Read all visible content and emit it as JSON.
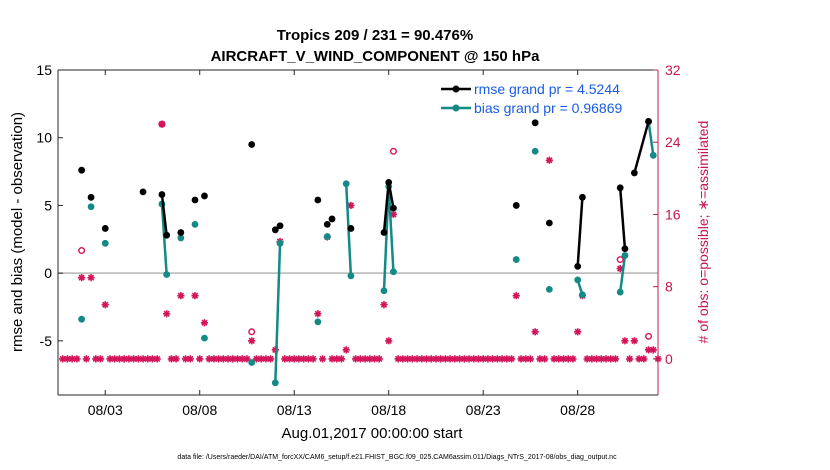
{
  "chart_data": {
    "type": "line",
    "title_line1": "Tropics 209 / 231 = 90.476%",
    "title_line2": "AIRCRAFT_V_WIND_COMPONENT @ 150 hPa",
    "xlabel": "Aug.01,2017 00:00:00 start",
    "ylabel_left": "rmse and bias (model - observation)",
    "ylabel_right": "# of obs: o=possible; ∗=assimilated",
    "footnote": "data file: /Users/raeder/DAI/ATM_forcXX/CAM6_setup/f.e21.FHIST_BGC.f09_025.CAM6assim.011/Diags_NTrS_2017-08/obs_diag_output.nc",
    "xlim": [
      0.5,
      32.25
    ],
    "ylim_left": [
      -9,
      15
    ],
    "ylim_right": [
      -4,
      32
    ],
    "x_ticks": [
      {
        "label": "08/03",
        "x": 3
      },
      {
        "label": "08/08",
        "x": 8
      },
      {
        "label": "08/13",
        "x": 13
      },
      {
        "label": "08/18",
        "x": 18
      },
      {
        "label": "08/23",
        "x": 23
      },
      {
        "label": "08/28",
        "x": 28
      }
    ],
    "y_ticks_left": [
      -5,
      0,
      5,
      10,
      15
    ],
    "y_ticks_right": [
      0,
      8,
      16,
      24,
      32
    ],
    "zero_line": 0,
    "legend": [
      {
        "name": "rmse grand pr = 4.5244"
      },
      {
        "name": "bias grand pr = 0.96869"
      }
    ],
    "colors": {
      "rmse": "#000000",
      "bias": "#138a85",
      "obs": "#d4145a",
      "zero_line": "#b5b5b5",
      "legend_text": "#1a5ce6"
    },
    "rmse": [
      {
        "x": 1.75,
        "y": 7.6
      },
      {
        "x": 2.25,
        "y": 5.6
      },
      {
        "x": 3.0,
        "y": 3.3
      },
      {
        "x": 5.0,
        "y": 6.0
      },
      {
        "x": 6.0,
        "y": 5.8
      },
      {
        "x": 6.25,
        "y": 2.8
      },
      {
        "x": 7.0,
        "y": 3.0
      },
      {
        "x": 7.75,
        "y": 5.4
      },
      {
        "x": 8.25,
        "y": 5.7
      },
      {
        "x": 10.75,
        "y": 9.5
      },
      {
        "x": 12.0,
        "y": 3.2
      },
      {
        "x": 12.25,
        "y": 3.5
      },
      {
        "x": 14.25,
        "y": 5.4
      },
      {
        "x": 14.75,
        "y": 3.6
      },
      {
        "x": 15.0,
        "y": 4.0
      },
      {
        "x": 16.0,
        "y": 3.3
      },
      {
        "x": 17.75,
        "y": 3.0
      },
      {
        "x": 18.0,
        "y": 6.7
      },
      {
        "x": 18.25,
        "y": 4.8
      },
      {
        "x": 24.75,
        "y": 5.0
      },
      {
        "x": 25.75,
        "y": 11.1
      },
      {
        "x": 26.5,
        "y": 3.7
      },
      {
        "x": 28.0,
        "y": 0.5
      },
      {
        "x": 28.25,
        "y": 5.6
      },
      {
        "x": 30.25,
        "y": 6.3
      },
      {
        "x": 30.5,
        "y": 1.8
      },
      {
        "x": 31.0,
        "y": 7.4
      },
      {
        "x": 31.75,
        "y": 11.2
      }
    ],
    "rmse_segments": [
      [
        4,
        5
      ],
      [
        10,
        11
      ],
      [
        16,
        17
      ],
      [
        17,
        18
      ],
      [
        22,
        23
      ],
      [
        24,
        25
      ],
      [
        27,
        26
      ]
    ],
    "bias": [
      {
        "x": 1.75,
        "y": -3.4
      },
      {
        "x": 2.25,
        "y": 4.9
      },
      {
        "x": 3.0,
        "y": 2.2
      },
      {
        "x": 6.0,
        "y": 5.1
      },
      {
        "x": 6.25,
        "y": -0.1
      },
      {
        "x": 7.0,
        "y": 2.6
      },
      {
        "x": 7.75,
        "y": 3.6
      },
      {
        "x": 8.25,
        "y": -4.8
      },
      {
        "x": 10.75,
        "y": -6.6
      },
      {
        "x": 12.0,
        "y": -8.1
      },
      {
        "x": 12.25,
        "y": 2.2
      },
      {
        "x": 14.25,
        "y": -3.6
      },
      {
        "x": 14.75,
        "y": 2.7
      },
      {
        "x": 15.75,
        "y": 6.6
      },
      {
        "x": 16.0,
        "y": -0.2
      },
      {
        "x": 17.75,
        "y": -1.3
      },
      {
        "x": 18.0,
        "y": 6.4
      },
      {
        "x": 18.25,
        "y": 0.1
      },
      {
        "x": 24.75,
        "y": 1.0
      },
      {
        "x": 25.75,
        "y": 9.0
      },
      {
        "x": 26.5,
        "y": -1.2
      },
      {
        "x": 28.0,
        "y": -0.5
      },
      {
        "x": 28.25,
        "y": -1.6
      },
      {
        "x": 30.25,
        "y": -1.4
      },
      {
        "x": 30.5,
        "y": 1.3
      },
      {
        "x": 31.75,
        "y": 11.2
      },
      {
        "x": 32.0,
        "y": 8.7
      }
    ],
    "bias_segments": [
      [
        3,
        4
      ],
      [
        9,
        10
      ],
      [
        13,
        14
      ],
      [
        15,
        16
      ],
      [
        16,
        17
      ],
      [
        21,
        22
      ],
      [
        23,
        24
      ],
      [
        25,
        26
      ]
    ],
    "obs_possible": [
      {
        "x": 1.75,
        "y": 12
      },
      {
        "x": 6.0,
        "y": 26
      },
      {
        "x": 10.75,
        "y": 3
      },
      {
        "x": 18.25,
        "y": 23
      },
      {
        "x": 30.25,
        "y": 11
      },
      {
        "x": 31.75,
        "y": 2.5
      }
    ],
    "obs_assimilated": [
      {
        "x": 0.75,
        "y": 0
      },
      {
        "x": 1.0,
        "y": 0
      },
      {
        "x": 1.25,
        "y": 0
      },
      {
        "x": 1.5,
        "y": 0
      },
      {
        "x": 1.75,
        "y": 9
      },
      {
        "x": 2.0,
        "y": 0
      },
      {
        "x": 2.25,
        "y": 9
      },
      {
        "x": 2.5,
        "y": 0
      },
      {
        "x": 2.75,
        "y": 0
      },
      {
        "x": 3.0,
        "y": 6
      },
      {
        "x": 3.25,
        "y": 0
      },
      {
        "x": 3.5,
        "y": 0
      },
      {
        "x": 3.75,
        "y": 0
      },
      {
        "x": 4.0,
        "y": 0
      },
      {
        "x": 4.25,
        "y": 0
      },
      {
        "x": 4.5,
        "y": 0
      },
      {
        "x": 4.75,
        "y": 0
      },
      {
        "x": 5.0,
        "y": 0
      },
      {
        "x": 5.25,
        "y": 0
      },
      {
        "x": 5.5,
        "y": 0
      },
      {
        "x": 5.75,
        "y": 0
      },
      {
        "x": 6.0,
        "y": 26
      },
      {
        "x": 6.25,
        "y": 5
      },
      {
        "x": 6.5,
        "y": 0
      },
      {
        "x": 6.75,
        "y": 0
      },
      {
        "x": 7.0,
        "y": 7
      },
      {
        "x": 7.25,
        "y": 0
      },
      {
        "x": 7.5,
        "y": 0
      },
      {
        "x": 7.75,
        "y": 7
      },
      {
        "x": 8.0,
        "y": 0
      },
      {
        "x": 8.25,
        "y": 4
      },
      {
        "x": 8.5,
        "y": 0
      },
      {
        "x": 8.75,
        "y": 0
      },
      {
        "x": 9.0,
        "y": 0
      },
      {
        "x": 9.25,
        "y": 0
      },
      {
        "x": 9.5,
        "y": 0
      },
      {
        "x": 9.75,
        "y": 0
      },
      {
        "x": 10.0,
        "y": 0
      },
      {
        "x": 10.25,
        "y": 0
      },
      {
        "x": 10.5,
        "y": 0
      },
      {
        "x": 10.75,
        "y": 2
      },
      {
        "x": 11.0,
        "y": 0
      },
      {
        "x": 11.25,
        "y": 0
      },
      {
        "x": 11.5,
        "y": 0
      },
      {
        "x": 11.75,
        "y": 0
      },
      {
        "x": 12.0,
        "y": 1
      },
      {
        "x": 12.25,
        "y": 13
      },
      {
        "x": 12.5,
        "y": 0
      },
      {
        "x": 12.75,
        "y": 0
      },
      {
        "x": 13.0,
        "y": 0
      },
      {
        "x": 13.25,
        "y": 0
      },
      {
        "x": 13.5,
        "y": 0
      },
      {
        "x": 13.75,
        "y": 0
      },
      {
        "x": 14.0,
        "y": 0
      },
      {
        "x": 14.25,
        "y": 5
      },
      {
        "x": 14.5,
        "y": 0
      },
      {
        "x": 14.75,
        "y": 13.5
      },
      {
        "x": 15.0,
        "y": 0
      },
      {
        "x": 15.25,
        "y": 0
      },
      {
        "x": 15.5,
        "y": 0
      },
      {
        "x": 15.75,
        "y": 1
      },
      {
        "x": 16.0,
        "y": 17
      },
      {
        "x": 16.25,
        "y": 0
      },
      {
        "x": 16.5,
        "y": 0
      },
      {
        "x": 16.75,
        "y": 0
      },
      {
        "x": 17.0,
        "y": 0
      },
      {
        "x": 17.25,
        "y": 0
      },
      {
        "x": 17.5,
        "y": 0
      },
      {
        "x": 17.75,
        "y": 6
      },
      {
        "x": 18.0,
        "y": 2
      },
      {
        "x": 18.25,
        "y": 16
      },
      {
        "x": 18.5,
        "y": 0
      },
      {
        "x": 18.75,
        "y": 0
      },
      {
        "x": 19.0,
        "y": 0
      },
      {
        "x": 19.25,
        "y": 0
      },
      {
        "x": 19.5,
        "y": 0
      },
      {
        "x": 19.75,
        "y": 0
      },
      {
        "x": 20.0,
        "y": 0
      },
      {
        "x": 20.25,
        "y": 0
      },
      {
        "x": 20.5,
        "y": 0
      },
      {
        "x": 20.75,
        "y": 0
      },
      {
        "x": 21.0,
        "y": 0
      },
      {
        "x": 21.25,
        "y": 0
      },
      {
        "x": 21.5,
        "y": 0
      },
      {
        "x": 21.75,
        "y": 0
      },
      {
        "x": 22.0,
        "y": 0
      },
      {
        "x": 22.25,
        "y": 0
      },
      {
        "x": 22.5,
        "y": 0
      },
      {
        "x": 22.75,
        "y": 0
      },
      {
        "x": 23.0,
        "y": 0
      },
      {
        "x": 23.25,
        "y": 0
      },
      {
        "x": 23.5,
        "y": 0
      },
      {
        "x": 23.75,
        "y": 0
      },
      {
        "x": 24.0,
        "y": 0
      },
      {
        "x": 24.25,
        "y": 0
      },
      {
        "x": 24.5,
        "y": 0
      },
      {
        "x": 24.75,
        "y": 7
      },
      {
        "x": 25.0,
        "y": 0
      },
      {
        "x": 25.25,
        "y": 0
      },
      {
        "x": 25.5,
        "y": 0
      },
      {
        "x": 25.75,
        "y": 3
      },
      {
        "x": 26.0,
        "y": 0
      },
      {
        "x": 26.25,
        "y": 0
      },
      {
        "x": 26.5,
        "y": 22
      },
      {
        "x": 26.75,
        "y": 0
      },
      {
        "x": 27.0,
        "y": 0
      },
      {
        "x": 27.25,
        "y": 0
      },
      {
        "x": 27.5,
        "y": 0
      },
      {
        "x": 27.75,
        "y": 0
      },
      {
        "x": 28.0,
        "y": 3
      },
      {
        "x": 28.25,
        "y": 7
      },
      {
        "x": 28.5,
        "y": 0
      },
      {
        "x": 28.75,
        "y": 0
      },
      {
        "x": 29.0,
        "y": 0
      },
      {
        "x": 29.25,
        "y": 0
      },
      {
        "x": 29.5,
        "y": 0
      },
      {
        "x": 29.75,
        "y": 0
      },
      {
        "x": 30.0,
        "y": 0
      },
      {
        "x": 30.25,
        "y": 10
      },
      {
        "x": 30.5,
        "y": 2
      },
      {
        "x": 30.75,
        "y": 0
      },
      {
        "x": 31.0,
        "y": 2
      },
      {
        "x": 31.25,
        "y": 0
      },
      {
        "x": 31.5,
        "y": 0
      },
      {
        "x": 31.75,
        "y": 1
      },
      {
        "x": 32.0,
        "y": 1
      },
      {
        "x": 32.25,
        "y": 0
      }
    ]
  }
}
